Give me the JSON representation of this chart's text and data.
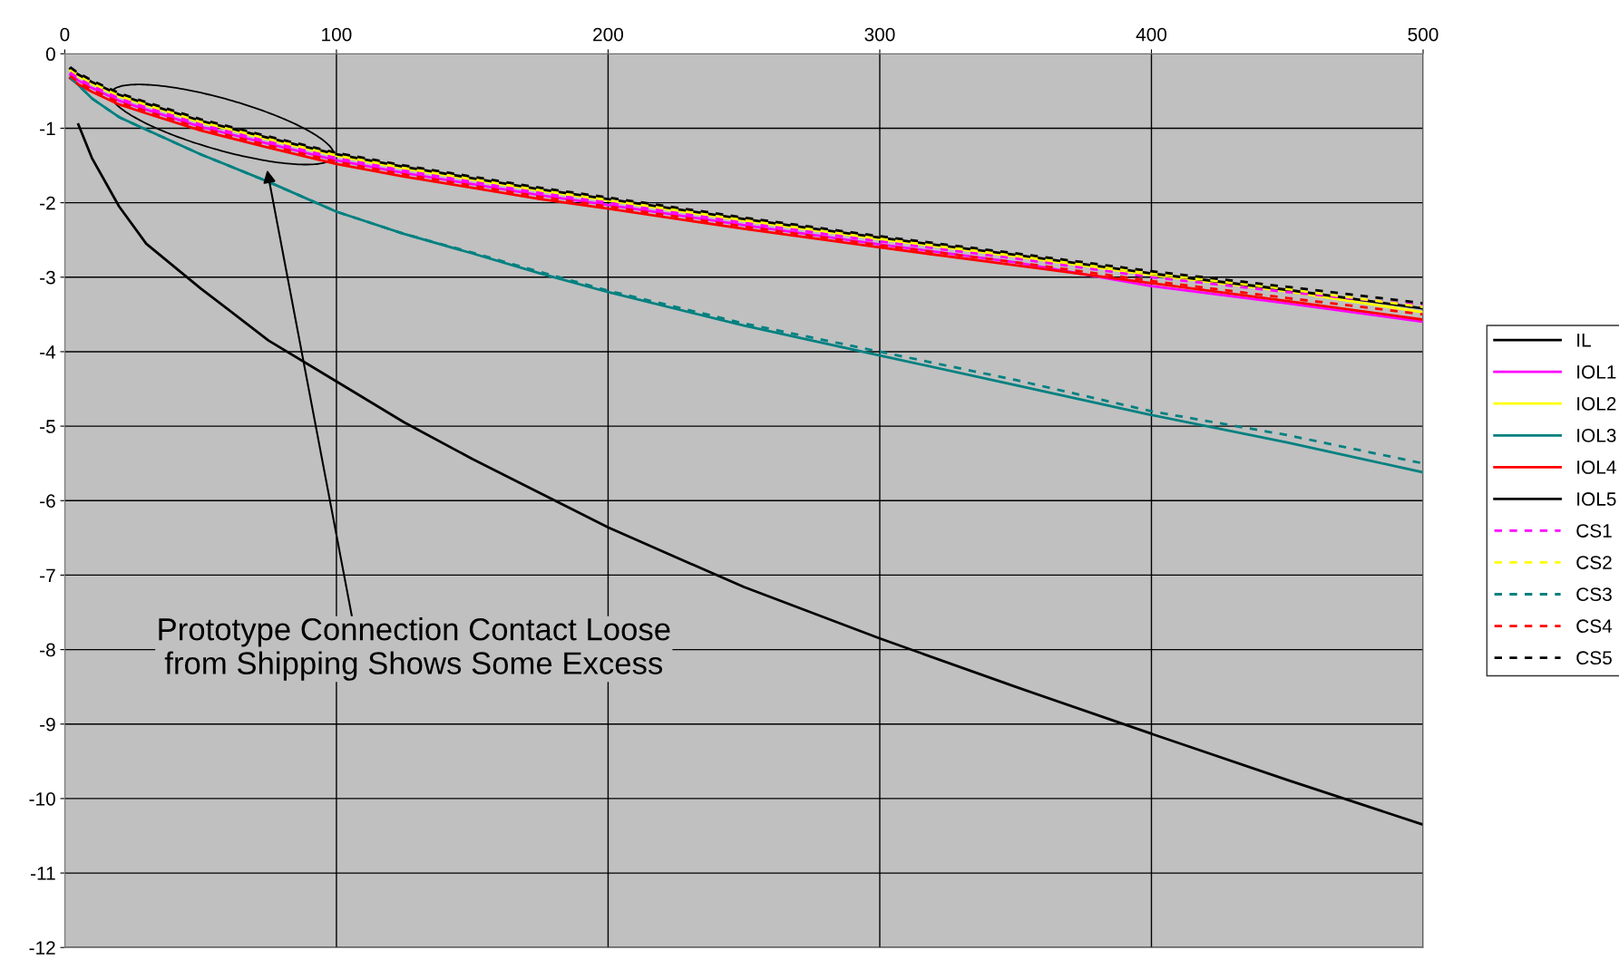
{
  "chart_data": {
    "type": "line",
    "x": [
      2,
      5,
      10,
      20,
      30,
      50,
      75,
      100,
      125,
      150,
      175,
      200,
      250,
      300,
      350,
      400,
      450,
      500
    ],
    "series": [
      {
        "name": "IL",
        "color": "#000000",
        "line_style": "solid",
        "values": [
          null,
          -0.95,
          -1.4,
          -2.05,
          -2.55,
          -3.15,
          -3.85,
          -4.4,
          -4.95,
          -5.44,
          -5.9,
          -6.36,
          -7.16,
          -7.85,
          -8.5,
          -9.13,
          -9.75,
          -10.35
        ]
      },
      {
        "name": "IOL1",
        "color": "#ff00ff",
        "line_style": "solid",
        "values": [
          -0.28,
          -0.36,
          -0.46,
          -0.63,
          -0.75,
          -0.98,
          -1.21,
          -1.43,
          -1.6,
          -1.75,
          -1.9,
          -2.03,
          -2.3,
          -2.56,
          -2.8,
          -3.12,
          -3.35,
          -3.6
        ]
      },
      {
        "name": "IOL2",
        "color": "#ffff00",
        "line_style": "solid",
        "values": [
          -0.22,
          -0.3,
          -0.4,
          -0.57,
          -0.69,
          -0.92,
          -1.15,
          -1.37,
          -1.54,
          -1.69,
          -1.84,
          -1.97,
          -2.24,
          -2.49,
          -2.72,
          -2.97,
          -3.19,
          -3.47
        ]
      },
      {
        "name": "IOL3",
        "color": "#008080",
        "line_style": "solid",
        "values": [
          -0.32,
          -0.42,
          -0.6,
          -0.85,
          -1.02,
          -1.35,
          -1.72,
          -2.12,
          -2.42,
          -2.68,
          -2.95,
          -3.2,
          -3.65,
          -4.05,
          -4.45,
          -4.85,
          -5.22,
          -5.62
        ]
      },
      {
        "name": "IOL4",
        "color": "#ff0000",
        "line_style": "solid",
        "values": [
          -0.33,
          -0.41,
          -0.51,
          -0.68,
          -0.8,
          -1.03,
          -1.26,
          -1.48,
          -1.65,
          -1.8,
          -1.95,
          -2.08,
          -2.35,
          -2.6,
          -2.84,
          -3.08,
          -3.32,
          -3.57
        ]
      },
      {
        "name": "IOL5",
        "color": "#000000",
        "line_style": "solid",
        "values": [
          -0.2,
          -0.28,
          -0.38,
          -0.55,
          -0.67,
          -0.9,
          -1.13,
          -1.35,
          -1.52,
          -1.67,
          -1.82,
          -1.95,
          -2.22,
          -2.47,
          -2.7,
          -2.95,
          -3.17,
          -3.42
        ]
      },
      {
        "name": "CS1",
        "color": "#ff00ff",
        "line_style": "dashed",
        "values": [
          -0.25,
          -0.33,
          -0.43,
          -0.6,
          -0.72,
          -0.95,
          -1.18,
          -1.4,
          -1.57,
          -1.72,
          -1.87,
          -2.0,
          -2.27,
          -2.52,
          -2.75,
          -3.0,
          -3.2,
          -3.38
        ]
      },
      {
        "name": "CS2",
        "color": "#ffff00",
        "line_style": "dashed",
        "values": [
          -0.21,
          -0.29,
          -0.39,
          -0.56,
          -0.68,
          -0.91,
          -1.14,
          -1.36,
          -1.53,
          -1.68,
          -1.83,
          -1.96,
          -2.23,
          -2.48,
          -2.71,
          -2.95,
          -3.16,
          -3.4
        ]
      },
      {
        "name": "CS3",
        "color": "#008080",
        "line_style": "dashed",
        "values": [
          -0.32,
          -0.42,
          -0.6,
          -0.85,
          -1.02,
          -1.35,
          -1.72,
          -2.12,
          -2.42,
          -2.67,
          -2.93,
          -3.18,
          -3.62,
          -4.0,
          -4.38,
          -4.8,
          -5.12,
          -5.5
        ]
      },
      {
        "name": "CS4",
        "color": "#ff0000",
        "line_style": "dashed",
        "values": [
          -0.3,
          -0.38,
          -0.48,
          -0.65,
          -0.77,
          -1.0,
          -1.23,
          -1.45,
          -1.62,
          -1.77,
          -1.92,
          -2.05,
          -2.32,
          -2.57,
          -2.8,
          -3.05,
          -3.28,
          -3.5
        ]
      },
      {
        "name": "CS5",
        "color": "#000000",
        "line_style": "dashed",
        "values": [
          -0.18,
          -0.26,
          -0.36,
          -0.53,
          -0.65,
          -0.88,
          -1.11,
          -1.33,
          -1.5,
          -1.65,
          -1.8,
          -1.93,
          -2.2,
          -2.45,
          -2.68,
          -2.92,
          -3.13,
          -3.35
        ]
      }
    ],
    "xlim": [
      0,
      500
    ],
    "xticks": [
      0,
      100,
      200,
      300,
      400,
      500
    ],
    "ylim": [
      -12,
      0
    ],
    "yticks": [
      -12,
      -11,
      -10,
      -9,
      -8,
      -7,
      -6,
      -5,
      -4,
      -3,
      -2,
      -1,
      0
    ],
    "grid": true,
    "legend": "right",
    "marker": "none",
    "annotations": [
      {
        "text": "Prototype Connection Contact Loose\nfrom Shipping Shows Some Excess",
        "x": 74.5,
        "y": -1.56
      }
    ]
  }
}
